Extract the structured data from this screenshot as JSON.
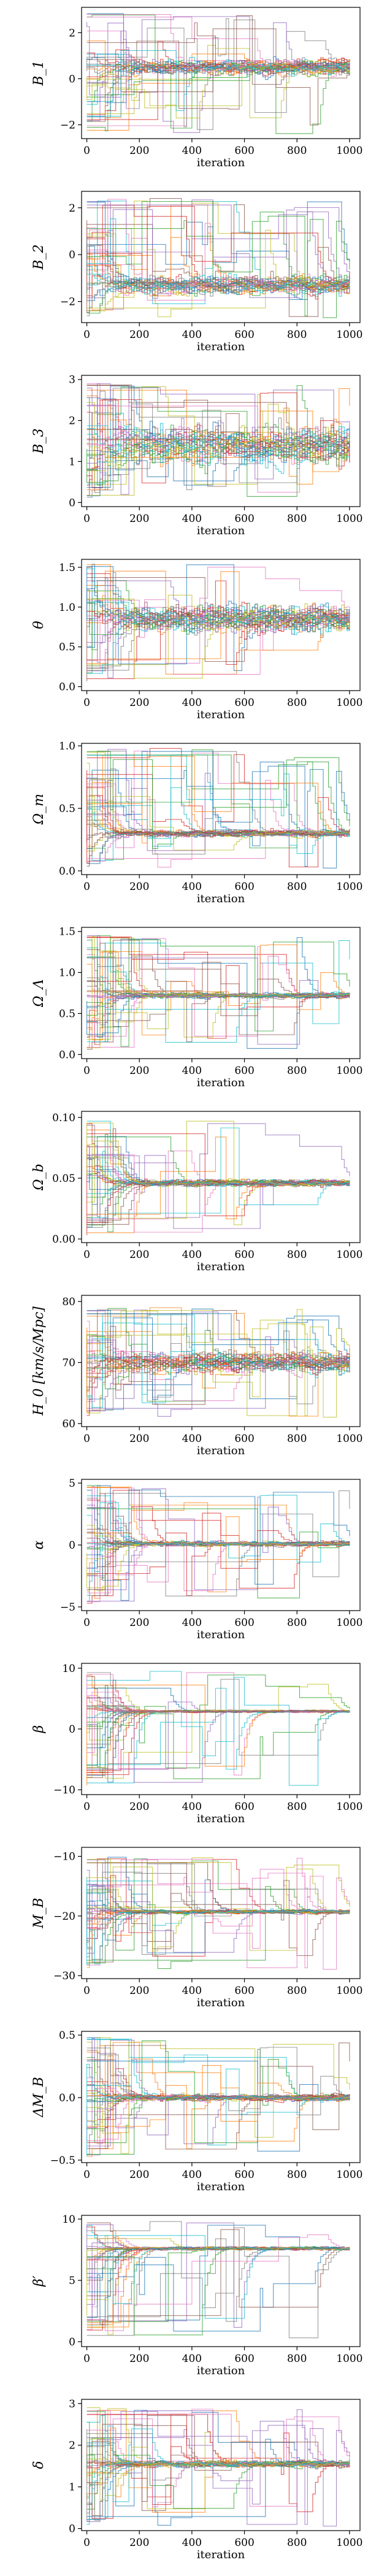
{
  "palette": [
    "#1f77b4",
    "#ff7f0e",
    "#2ca02c",
    "#d62728",
    "#9467bd",
    "#8c564b",
    "#e377c2",
    "#7f7f7f",
    "#bcbd22",
    "#17becf"
  ],
  "chart_data": [
    {
      "type": "line",
      "ylabel": "B_1",
      "xlabel": "iteration",
      "xlim": [
        -20,
        1040
      ],
      "ylim": [
        -2.6,
        3.1
      ],
      "xticks": [
        0,
        200,
        400,
        600,
        800,
        1000
      ],
      "yticks": [
        -2,
        0,
        2
      ],
      "ytick_labels": [
        "−2",
        "0",
        "2"
      ],
      "converge": 0.5,
      "band": 0.5,
      "init": [
        -2.4,
        2.9
      ],
      "ndraw": 40
    },
    {
      "type": "line",
      "ylabel": "B_2",
      "xlabel": "iteration",
      "xlim": [
        -20,
        1040
      ],
      "ylim": [
        -2.9,
        2.7
      ],
      "xticks": [
        0,
        200,
        400,
        600,
        800,
        1000
      ],
      "yticks": [
        -2,
        0,
        2
      ],
      "ytick_labels": [
        "−2",
        "0",
        "2"
      ],
      "converge": -1.3,
      "band": 0.6,
      "init": [
        -2.7,
        2.4
      ],
      "ndraw": 40
    },
    {
      "type": "line",
      "ylabel": "B_3",
      "xlabel": "iteration",
      "xlim": [
        -20,
        1040
      ],
      "ylim": [
        -0.1,
        3.1
      ],
      "xticks": [
        0,
        200,
        400,
        600,
        800,
        1000
      ],
      "yticks": [
        0,
        1,
        2,
        3
      ],
      "ytick_labels": [
        "0",
        "1",
        "2",
        "3"
      ],
      "converge": 1.4,
      "band": 0.7,
      "init": [
        0.1,
        2.9
      ],
      "ndraw": 40
    },
    {
      "type": "line",
      "ylabel": "θ",
      "xlabel": "iteration",
      "xlim": [
        -20,
        1040
      ],
      "ylim": [
        -0.05,
        1.6
      ],
      "xticks": [
        0,
        200,
        400,
        600,
        800,
        1000
      ],
      "yticks": [
        0.0,
        0.5,
        1.0,
        1.5
      ],
      "ytick_labels": [
        "0.0",
        "0.5",
        "1.0",
        "1.5"
      ],
      "converge": 0.85,
      "band": 0.25,
      "init": [
        0.05,
        1.55
      ],
      "ndraw": 40
    },
    {
      "type": "line",
      "ylabel": "Ω_m",
      "xlabel": "iteration",
      "xlim": [
        -20,
        1040
      ],
      "ylim": [
        -0.03,
        1.02
      ],
      "xticks": [
        0,
        200,
        400,
        600,
        800,
        1000
      ],
      "yticks": [
        0.0,
        0.5,
        1.0
      ],
      "ytick_labels": [
        "0.0",
        "0.5",
        "1.0"
      ],
      "converge": 0.3,
      "band": 0.04,
      "init": [
        0.02,
        0.98
      ],
      "ndraw": 40
    },
    {
      "type": "line",
      "ylabel": "Ω_Λ",
      "xlabel": "iteration",
      "xlim": [
        -20,
        1040
      ],
      "ylim": [
        -0.05,
        1.55
      ],
      "xticks": [
        0,
        200,
        400,
        600,
        800,
        1000
      ],
      "yticks": [
        0.0,
        0.5,
        1.0,
        1.5
      ],
      "ytick_labels": [
        "0.0",
        "0.5",
        "1.0",
        "1.5"
      ],
      "converge": 0.72,
      "band": 0.05,
      "init": [
        0.05,
        1.45
      ],
      "ndraw": 40
    },
    {
      "type": "line",
      "ylabel": "Ω_b",
      "xlabel": "iteration",
      "xlim": [
        -20,
        1040
      ],
      "ylim": [
        -0.003,
        0.105
      ],
      "xticks": [
        0,
        200,
        400,
        600,
        800,
        1000
      ],
      "yticks": [
        0.0,
        0.05,
        0.1
      ],
      "ytick_labels": [
        "0.00",
        "0.05",
        "0.10"
      ],
      "converge": 0.046,
      "band": 0.004,
      "init": [
        0.002,
        0.098
      ],
      "ndraw": 40
    },
    {
      "type": "line",
      "ylabel": "H_0 [km/s/Mpc]",
      "xlabel": "iteration",
      "xlim": [
        -20,
        1040
      ],
      "ylim": [
        59.5,
        81
      ],
      "xticks": [
        0,
        200,
        400,
        600,
        800,
        1000
      ],
      "yticks": [
        60,
        70,
        80
      ],
      "ytick_labels": [
        "60",
        "70",
        "80"
      ],
      "converge": 70,
      "band": 2.5,
      "init": [
        61,
        79
      ],
      "ndraw": 40
    },
    {
      "type": "line",
      "ylabel": "α",
      "xlabel": "iteration",
      "xlim": [
        -20,
        1040
      ],
      "ylim": [
        -5.3,
        5.3
      ],
      "xticks": [
        0,
        200,
        400,
        600,
        800,
        1000
      ],
      "yticks": [
        -5,
        0,
        5
      ],
      "ytick_labels": [
        "−5",
        "0",
        "5"
      ],
      "converge": 0.1,
      "band": 0.3,
      "init": [
        -4.8,
        4.8
      ],
      "ndraw": 40
    },
    {
      "type": "line",
      "ylabel": "β",
      "xlabel": "iteration",
      "xlim": [
        -20,
        1040
      ],
      "ylim": [
        -10.8,
        10.8
      ],
      "xticks": [
        0,
        200,
        400,
        600,
        800,
        1000
      ],
      "yticks": [
        -10,
        0,
        10
      ],
      "ytick_labels": [
        "−10",
        "0",
        "10"
      ],
      "converge": 2.9,
      "band": 0.3,
      "init": [
        -9.5,
        9.5
      ],
      "ndraw": 40
    },
    {
      "type": "line",
      "ylabel": "M_B",
      "xlabel": "iteration",
      "xlim": [
        -20,
        1040
      ],
      "ylim": [
        -30.5,
        -8.5
      ],
      "xticks": [
        0,
        200,
        400,
        600,
        800,
        1000
      ],
      "yticks": [
        -30,
        -20,
        -10
      ],
      "ytick_labels": [
        "−30",
        "−20",
        "−10"
      ],
      "converge": -19.3,
      "band": 0.5,
      "init": [
        -29,
        -10
      ],
      "ndraw": 40
    },
    {
      "type": "line",
      "ylabel": "ΔM_B",
      "xlabel": "iteration",
      "xlim": [
        -20,
        1040
      ],
      "ylim": [
        -0.52,
        0.53
      ],
      "xticks": [
        0,
        200,
        400,
        600,
        800,
        1000
      ],
      "yticks": [
        -0.5,
        0.0,
        0.5
      ],
      "ytick_labels": [
        "−0.5",
        "0.0",
        "0.5"
      ],
      "converge": 0.0,
      "band": 0.04,
      "init": [
        -0.48,
        0.48
      ],
      "ndraw": 40
    },
    {
      "type": "line",
      "ylabel": "β′",
      "xlabel": "iteration",
      "xlim": [
        -20,
        1040
      ],
      "ylim": [
        -0.4,
        10.3
      ],
      "xticks": [
        0,
        200,
        400,
        600,
        800,
        1000
      ],
      "yticks": [
        0,
        5,
        10
      ],
      "ytick_labels": [
        "0",
        "5",
        "10"
      ],
      "converge": 7.6,
      "band": 0.2,
      "init": [
        0.2,
        9.8
      ],
      "ndraw": 40
    },
    {
      "type": "line",
      "ylabel": "δ",
      "xlabel": "iteration",
      "xlim": [
        -20,
        1040
      ],
      "ylim": [
        -0.05,
        3.1
      ],
      "xticks": [
        0,
        200,
        400,
        600,
        800,
        1000
      ],
      "yticks": [
        0,
        1,
        2,
        3
      ],
      "ytick_labels": [
        "0",
        "1",
        "2",
        "3"
      ],
      "converge": 1.55,
      "band": 0.12,
      "init": [
        0.05,
        2.9
      ],
      "ndraw": 40
    }
  ]
}
